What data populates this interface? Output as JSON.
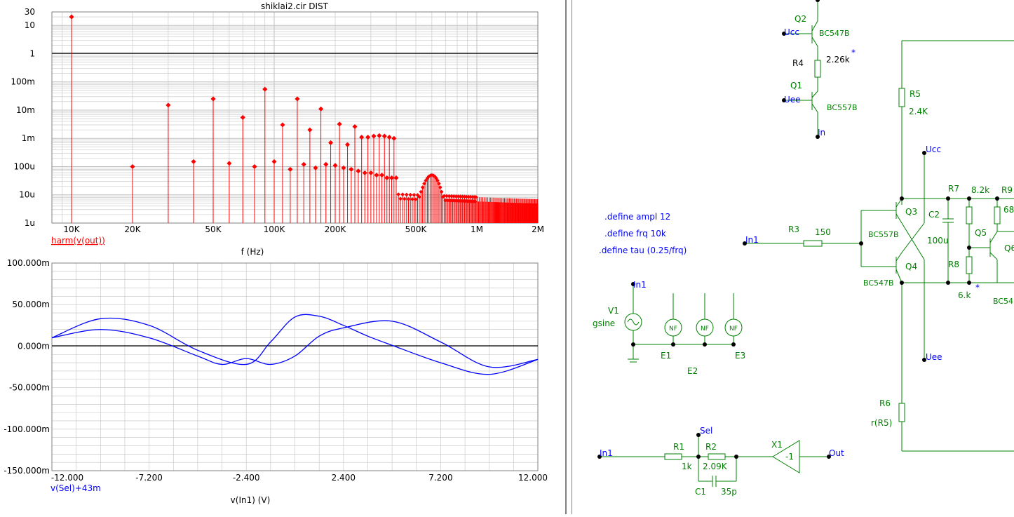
{
  "title": "shiklai2.cir DIST",
  "colors": {
    "harm": "#ff0000",
    "curve": "#0000ff",
    "grid": "#c0c0c0",
    "wire": "#008000",
    "net": "#0000ff",
    "component": "#008000"
  },
  "chart_data": [
    {
      "type": "bar",
      "title": "shiklai2.cir DIST",
      "xlabel": "f (Hz)",
      "scale": "log-log",
      "xlim": [
        8000,
        2000000
      ],
      "ylim": [
        1e-06,
        30
      ],
      "x_ticks": [
        "10K",
        "20K",
        "50K",
        "100K",
        "200K",
        "500K",
        "1M",
        "2M"
      ],
      "y_ticks": [
        "30",
        "10",
        "1",
        "100m",
        "10m",
        "1m",
        "100u",
        "10u",
        "1u"
      ],
      "legend": "harm(v(out))",
      "reference_line": 1,
      "series": [
        {
          "name": "harm(v(out))",
          "x": [
            10000,
            20000,
            30000,
            40000,
            50000,
            60000,
            70000,
            80000,
            90000,
            100000,
            110000,
            120000,
            130000,
            140000,
            150000,
            160000,
            170000,
            180000,
            190000,
            200000,
            210000,
            220000,
            230000,
            240000,
            250000,
            260000,
            270000,
            280000,
            290000,
            300000,
            310000,
            320000,
            330000,
            340000,
            350000,
            360000,
            370000,
            380000,
            390000,
            400000
          ],
          "values": [
            20,
            0.0001,
            0.015,
            0.00015,
            0.025,
            0.00013,
            0.0055,
            0.0001,
            0.055,
            0.00015,
            0.003,
            8e-05,
            0.025,
            0.00012,
            0.002,
            9e-05,
            0.011,
            0.00012,
            0.0007,
            0.00011,
            0.0032,
            9e-05,
            0.0006,
            8e-05,
            0.0026,
            7e-05,
            0.0011,
            6e-05,
            0.0011,
            6e-05,
            0.0012,
            5e-05,
            0.00125,
            5e-05,
            0.0012,
            4e-05,
            0.0011,
            4e-05,
            0.001,
            4e-05
          ]
        }
      ]
    },
    {
      "type": "line",
      "xlabel": "v(In1) (V)",
      "xlim": [
        -12,
        12
      ],
      "ylim": [
        -0.15,
        0.1
      ],
      "x_ticks": [
        "-12.000",
        "-7.200",
        "-2.400",
        "2.400",
        "7.200",
        "12.000"
      ],
      "y_ticks": [
        "100.000m",
        "50.000m",
        "0.000m",
        "-50.000m",
        "-100.000m",
        "-150.000m"
      ],
      "legend": "v(Sel)+43m",
      "series": [
        {
          "name": "v(Sel)+43m",
          "x": [
            -12,
            -9.6,
            -7.2,
            -4.8,
            -2.4,
            -1.2,
            0,
            1.2,
            2.4,
            3.6,
            4.8,
            7.2,
            9.6,
            12
          ],
          "values": [
            0.01,
            0.033,
            0.025,
            -0.005,
            -0.022,
            0.005,
            0.035,
            0.036,
            0.025,
            0.012,
            0.001,
            -0.02,
            -0.034,
            -0.016
          ]
        },
        {
          "name": "",
          "x": [
            -12,
            -9.6,
            -7.2,
            -4.8,
            -3.6,
            -2.4,
            -1.2,
            0,
            1.2,
            2.4,
            4.8,
            7.2,
            9.6,
            12
          ],
          "values": [
            0.01,
            0.02,
            0.01,
            -0.012,
            -0.022,
            -0.015,
            -0.022,
            -0.012,
            0.012,
            0.022,
            0.03,
            0.005,
            -0.025,
            -0.016
          ]
        }
      ]
    }
  ],
  "schematic": {
    "directives": [
      ".define ampl 12",
      ".define frq 10k",
      ".define tau (0.25/frq)"
    ],
    "labels": {
      "q2": "Q2",
      "q2_model": "BC547B",
      "ucc1": "Ucc",
      "r4": "R4",
      "r4_value": "2.26k",
      "star1": "*",
      "q1": "Q1",
      "q1_model": "BC557B",
      "uee1": "Uee",
      "in_net": "In",
      "r5": "R5",
      "r5_value": "2.4K",
      "ucc2": "Ucc",
      "r7": "R7",
      "r7_value": "8.2k",
      "r9": "R9",
      "r9_value": "68",
      "c2": "C2",
      "c2_value": "100u",
      "q3": "Q3",
      "q3_model": "BC557B",
      "q4": "Q4",
      "q4_model": "BC547B",
      "q5": "Q5",
      "q6": "Q6",
      "q6_model": "BC54",
      "r3": "R3",
      "r3_value": "150",
      "in1_a": "In1",
      "r8": "R8",
      "r8_value": "6.k",
      "star2": "*",
      "uee2": "Uee",
      "r6": "R6",
      "r6_value": "r(R5)",
      "v1": "V1",
      "v1_model": "gsine",
      "in1_b": "In1",
      "e1": "E1",
      "e2": "E2",
      "e3": "E3",
      "nf": "NF",
      "sel": "Sel",
      "in1_c": "In1",
      "r1": "R1",
      "r1_value": "1k",
      "r2": "R2",
      "r2_value": "2.09K",
      "c1": "C1",
      "c1_value": "35p",
      "x1": "X1",
      "x1_value": "-1",
      "out": "Out"
    }
  }
}
